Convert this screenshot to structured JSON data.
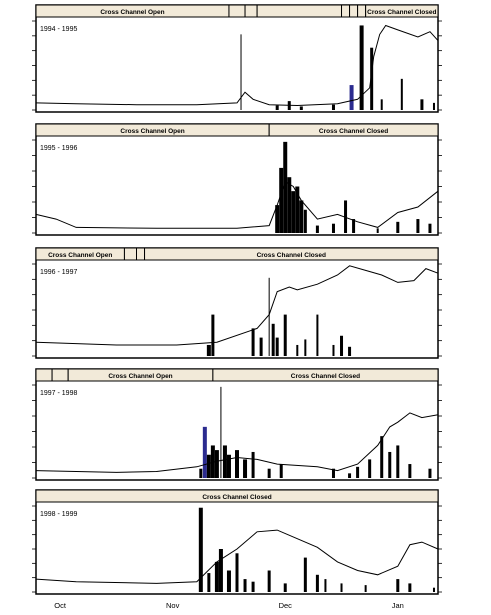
{
  "figure": {
    "x_labels": [
      "Oct",
      "Nov",
      "Dec",
      "Jan"
    ]
  },
  "chart_data": [
    {
      "type": "bar",
      "title": "1994 - 1995",
      "gate_status": [
        {
          "label": "Cross Channel Open",
          "start": 0.0,
          "end": 0.48
        },
        {
          "label": "",
          "start": 0.48,
          "end": 0.52
        },
        {
          "label": "",
          "start": 0.52,
          "end": 0.55
        },
        {
          "label": "",
          "start": 0.55,
          "end": 0.76
        },
        {
          "label": "",
          "start": 0.76,
          "end": 0.78
        },
        {
          "label": "",
          "start": 0.78,
          "end": 0.8
        },
        {
          "label": "",
          "start": 0.8,
          "end": 0.82
        },
        {
          "label": "Cross Channel Closed",
          "start": 0.82,
          "end": 1.0
        }
      ],
      "line": [
        [
          0,
          0.08
        ],
        [
          0.1,
          0.07
        ],
        [
          0.25,
          0.06
        ],
        [
          0.4,
          0.06
        ],
        [
          0.5,
          0.08
        ],
        [
          0.52,
          0.2
        ],
        [
          0.54,
          0.12
        ],
        [
          0.58,
          0.06
        ],
        [
          0.65,
          0.05
        ],
        [
          0.75,
          0.07
        ],
        [
          0.8,
          0.12
        ],
        [
          0.83,
          0.25
        ],
        [
          0.84,
          0.6
        ],
        [
          0.855,
          0.85
        ],
        [
          0.87,
          0.95
        ],
        [
          0.9,
          0.9
        ],
        [
          0.95,
          0.82
        ],
        [
          0.98,
          0.88
        ],
        [
          1,
          0.78
        ]
      ],
      "bars": [
        {
          "x": 0.51,
          "h": 0.85,
          "w": 1,
          "color": "#000000"
        },
        {
          "x": 0.6,
          "h": 0.05,
          "w": 3,
          "color": "#000000"
        },
        {
          "x": 0.63,
          "h": 0.1,
          "w": 3,
          "color": "#000000"
        },
        {
          "x": 0.66,
          "h": 0.04,
          "w": 3,
          "color": "#000000"
        },
        {
          "x": 0.74,
          "h": 0.06,
          "w": 3,
          "color": "#000000"
        },
        {
          "x": 0.785,
          "h": 0.28,
          "w": 4,
          "color": "#2b2b8f"
        },
        {
          "x": 0.81,
          "h": 0.95,
          "w": 4,
          "color": "#000000"
        },
        {
          "x": 0.835,
          "h": 0.7,
          "w": 3,
          "color": "#000000"
        },
        {
          "x": 0.86,
          "h": 0.12,
          "w": 2,
          "color": "#000000"
        },
        {
          "x": 0.91,
          "h": 0.35,
          "w": 2,
          "color": "#000000"
        },
        {
          "x": 0.96,
          "h": 0.12,
          "w": 3,
          "color": "#000000"
        },
        {
          "x": 0.99,
          "h": 0.08,
          "w": 2,
          "color": "#000000"
        }
      ]
    },
    {
      "type": "bar",
      "title": "1995 - 1996",
      "gate_status": [
        {
          "label": "Cross Channel Open",
          "start": 0.0,
          "end": 0.58
        },
        {
          "label": "Cross Channel Closed",
          "start": 0.58,
          "end": 1.0
        }
      ],
      "line": [
        [
          0,
          0.2
        ],
        [
          0.05,
          0.15
        ],
        [
          0.1,
          0.06
        ],
        [
          0.3,
          0.05
        ],
        [
          0.5,
          0.05
        ],
        [
          0.58,
          0.08
        ],
        [
          0.6,
          0.3
        ],
        [
          0.62,
          0.55
        ],
        [
          0.64,
          0.5
        ],
        [
          0.66,
          0.35
        ],
        [
          0.7,
          0.15
        ],
        [
          0.75,
          0.2
        ],
        [
          0.8,
          0.12
        ],
        [
          0.85,
          0.06
        ],
        [
          0.9,
          0.22
        ],
        [
          0.95,
          0.28
        ],
        [
          1,
          0.45
        ]
      ],
      "bars": [
        {
          "x": 0.6,
          "h": 0.3,
          "w": 4,
          "color": "#000000"
        },
        {
          "x": 0.61,
          "h": 0.7,
          "w": 4,
          "color": "#000000"
        },
        {
          "x": 0.62,
          "h": 0.98,
          "w": 4,
          "color": "#000000"
        },
        {
          "x": 0.63,
          "h": 0.6,
          "w": 4,
          "color": "#000000"
        },
        {
          "x": 0.64,
          "h": 0.45,
          "w": 4,
          "color": "#000000"
        },
        {
          "x": 0.65,
          "h": 0.5,
          "w": 4,
          "color": "#000000"
        },
        {
          "x": 0.66,
          "h": 0.35,
          "w": 4,
          "color": "#000000"
        },
        {
          "x": 0.67,
          "h": 0.25,
          "w": 3,
          "color": "#000000"
        },
        {
          "x": 0.7,
          "h": 0.08,
          "w": 3,
          "color": "#000000"
        },
        {
          "x": 0.74,
          "h": 0.1,
          "w": 3,
          "color": "#000000"
        },
        {
          "x": 0.77,
          "h": 0.35,
          "w": 3,
          "color": "#000000"
        },
        {
          "x": 0.79,
          "h": 0.15,
          "w": 3,
          "color": "#000000"
        },
        {
          "x": 0.85,
          "h": 0.05,
          "w": 2,
          "color": "#000000"
        },
        {
          "x": 0.9,
          "h": 0.12,
          "w": 3,
          "color": "#000000"
        },
        {
          "x": 0.95,
          "h": 0.15,
          "w": 3,
          "color": "#000000"
        },
        {
          "x": 0.98,
          "h": 0.1,
          "w": 3,
          "color": "#000000"
        }
      ]
    },
    {
      "type": "bar",
      "title": "1996 - 1997",
      "gate_status": [
        {
          "label": "Cross Channel Open",
          "start": 0.0,
          "end": 0.22
        },
        {
          "label": "",
          "start": 0.22,
          "end": 0.25
        },
        {
          "label": "",
          "start": 0.25,
          "end": 0.27
        },
        {
          "label": "Cross Channel Closed",
          "start": 0.27,
          "end": 1.0
        }
      ],
      "line": [
        [
          0,
          0.15
        ],
        [
          0.2,
          0.12
        ],
        [
          0.35,
          0.12
        ],
        [
          0.45,
          0.15
        ],
        [
          0.55,
          0.3
        ],
        [
          0.58,
          0.45
        ],
        [
          0.6,
          0.7
        ],
        [
          0.63,
          0.75
        ],
        [
          0.65,
          0.72
        ],
        [
          0.7,
          0.78
        ],
        [
          0.75,
          0.88
        ],
        [
          0.78,
          0.98
        ],
        [
          0.82,
          0.93
        ],
        [
          0.86,
          0.88
        ],
        [
          0.9,
          0.8
        ],
        [
          0.94,
          0.82
        ],
        [
          0.97,
          0.95
        ],
        [
          1,
          0.9
        ]
      ],
      "bars": [
        {
          "x": 0.43,
          "h": 0.12,
          "w": 4,
          "color": "#000000"
        },
        {
          "x": 0.44,
          "h": 0.45,
          "w": 3,
          "color": "#000000"
        },
        {
          "x": 0.54,
          "h": 0.3,
          "w": 3,
          "color": "#000000"
        },
        {
          "x": 0.56,
          "h": 0.2,
          "w": 3,
          "color": "#000000"
        },
        {
          "x": 0.58,
          "h": 0.85,
          "w": 1,
          "color": "#000000"
        },
        {
          "x": 0.59,
          "h": 0.35,
          "w": 3,
          "color": "#000000"
        },
        {
          "x": 0.6,
          "h": 0.2,
          "w": 3,
          "color": "#000000"
        },
        {
          "x": 0.62,
          "h": 0.45,
          "w": 3,
          "color": "#000000"
        },
        {
          "x": 0.65,
          "h": 0.12,
          "w": 2,
          "color": "#000000"
        },
        {
          "x": 0.67,
          "h": 0.18,
          "w": 2,
          "color": "#000000"
        },
        {
          "x": 0.7,
          "h": 0.45,
          "w": 2,
          "color": "#000000"
        },
        {
          "x": 0.74,
          "h": 0.12,
          "w": 2,
          "color": "#000000"
        },
        {
          "x": 0.76,
          "h": 0.22,
          "w": 3,
          "color": "#000000"
        },
        {
          "x": 0.78,
          "h": 0.1,
          "w": 3,
          "color": "#000000"
        }
      ]
    },
    {
      "type": "bar",
      "title": "1997 - 1998",
      "gate_status": [
        {
          "label": "",
          "start": 0.0,
          "end": 0.04
        },
        {
          "label": "",
          "start": 0.04,
          "end": 0.08
        },
        {
          "label": "Cross Channel Open",
          "start": 0.08,
          "end": 0.44
        },
        {
          "label": "Cross Channel Closed",
          "start": 0.44,
          "end": 1.0
        }
      ],
      "line": [
        [
          0,
          0.08
        ],
        [
          0.2,
          0.06
        ],
        [
          0.3,
          0.07
        ],
        [
          0.4,
          0.12
        ],
        [
          0.45,
          0.18
        ],
        [
          0.5,
          0.22
        ],
        [
          0.55,
          0.2
        ],
        [
          0.6,
          0.15
        ],
        [
          0.7,
          0.12
        ],
        [
          0.75,
          0.08
        ],
        [
          0.8,
          0.15
        ],
        [
          0.85,
          0.35
        ],
        [
          0.88,
          0.55
        ],
        [
          0.9,
          0.6
        ],
        [
          0.93,
          0.7
        ],
        [
          0.96,
          0.65
        ],
        [
          1,
          0.68
        ]
      ],
      "bars": [
        {
          "x": 0.41,
          "h": 0.1,
          "w": 3,
          "color": "#000000"
        },
        {
          "x": 0.42,
          "h": 0.55,
          "w": 4,
          "color": "#2b2b8f"
        },
        {
          "x": 0.43,
          "h": 0.25,
          "w": 4,
          "color": "#000000"
        },
        {
          "x": 0.44,
          "h": 0.35,
          "w": 4,
          "color": "#000000"
        },
        {
          "x": 0.45,
          "h": 0.3,
          "w": 4,
          "color": "#000000"
        },
        {
          "x": 0.46,
          "h": 0.98,
          "w": 1,
          "color": "#000000"
        },
        {
          "x": 0.47,
          "h": 0.35,
          "w": 4,
          "color": "#000000"
        },
        {
          "x": 0.48,
          "h": 0.25,
          "w": 4,
          "color": "#000000"
        },
        {
          "x": 0.5,
          "h": 0.3,
          "w": 4,
          "color": "#000000"
        },
        {
          "x": 0.52,
          "h": 0.2,
          "w": 4,
          "color": "#000000"
        },
        {
          "x": 0.54,
          "h": 0.28,
          "w": 3,
          "color": "#000000"
        },
        {
          "x": 0.58,
          "h": 0.1,
          "w": 3,
          "color": "#000000"
        },
        {
          "x": 0.61,
          "h": 0.15,
          "w": 3,
          "color": "#000000"
        },
        {
          "x": 0.74,
          "h": 0.1,
          "w": 3,
          "color": "#000000"
        },
        {
          "x": 0.78,
          "h": 0.05,
          "w": 3,
          "color": "#000000"
        },
        {
          "x": 0.8,
          "h": 0.12,
          "w": 3,
          "color": "#000000"
        },
        {
          "x": 0.83,
          "h": 0.2,
          "w": 3,
          "color": "#000000"
        },
        {
          "x": 0.86,
          "h": 0.45,
          "w": 3,
          "color": "#000000"
        },
        {
          "x": 0.88,
          "h": 0.28,
          "w": 3,
          "color": "#000000"
        },
        {
          "x": 0.9,
          "h": 0.35,
          "w": 3,
          "color": "#000000"
        },
        {
          "x": 0.93,
          "h": 0.15,
          "w": 3,
          "color": "#000000"
        },
        {
          "x": 0.98,
          "h": 0.1,
          "w": 3,
          "color": "#000000"
        }
      ]
    },
    {
      "type": "bar",
      "title": "1998 - 1999",
      "gate_status": [
        {
          "label": "Cross Channel Closed",
          "start": 0.0,
          "end": 1.0
        }
      ],
      "line": [
        [
          0,
          0.15
        ],
        [
          0.1,
          0.12
        ],
        [
          0.3,
          0.1
        ],
        [
          0.4,
          0.12
        ],
        [
          0.45,
          0.35
        ],
        [
          0.5,
          0.5
        ],
        [
          0.55,
          0.7
        ],
        [
          0.6,
          0.72
        ],
        [
          0.65,
          0.62
        ],
        [
          0.7,
          0.52
        ],
        [
          0.75,
          0.35
        ],
        [
          0.8,
          0.25
        ],
        [
          0.85,
          0.2
        ],
        [
          0.9,
          0.3
        ],
        [
          0.93,
          0.55
        ],
        [
          0.96,
          0.58
        ],
        [
          1,
          0.5
        ]
      ],
      "bars": [
        {
          "x": 0.41,
          "h": 0.98,
          "w": 4,
          "color": "#000000"
        },
        {
          "x": 0.43,
          "h": 0.22,
          "w": 3,
          "color": "#000000"
        },
        {
          "x": 0.45,
          "h": 0.35,
          "w": 4,
          "color": "#000000"
        },
        {
          "x": 0.46,
          "h": 0.5,
          "w": 4,
          "color": "#000000"
        },
        {
          "x": 0.48,
          "h": 0.25,
          "w": 4,
          "color": "#000000"
        },
        {
          "x": 0.5,
          "h": 0.45,
          "w": 3,
          "color": "#000000"
        },
        {
          "x": 0.52,
          "h": 0.15,
          "w": 3,
          "color": "#000000"
        },
        {
          "x": 0.54,
          "h": 0.12,
          "w": 3,
          "color": "#000000"
        },
        {
          "x": 0.58,
          "h": 0.25,
          "w": 3,
          "color": "#000000"
        },
        {
          "x": 0.62,
          "h": 0.1,
          "w": 3,
          "color": "#000000"
        },
        {
          "x": 0.67,
          "h": 0.4,
          "w": 3,
          "color": "#000000"
        },
        {
          "x": 0.7,
          "h": 0.2,
          "w": 3,
          "color": "#000000"
        },
        {
          "x": 0.72,
          "h": 0.15,
          "w": 2,
          "color": "#000000"
        },
        {
          "x": 0.76,
          "h": 0.1,
          "w": 2,
          "color": "#000000"
        },
        {
          "x": 0.82,
          "h": 0.08,
          "w": 2,
          "color": "#000000"
        },
        {
          "x": 0.9,
          "h": 0.15,
          "w": 3,
          "color": "#000000"
        },
        {
          "x": 0.93,
          "h": 0.1,
          "w": 3,
          "color": "#000000"
        },
        {
          "x": 0.99,
          "h": 0.05,
          "w": 2,
          "color": "#000000"
        }
      ]
    }
  ]
}
